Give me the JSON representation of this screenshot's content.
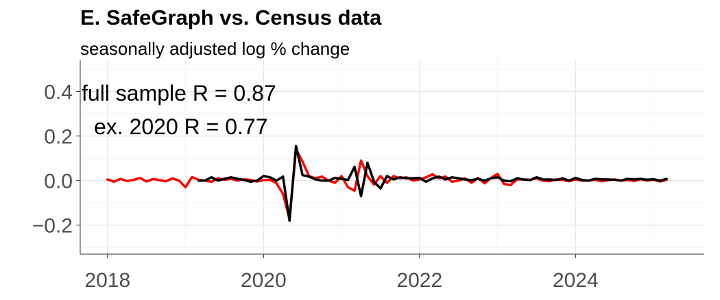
{
  "chart_data": {
    "type": "line",
    "title": "E. SafeGraph vs. Census data",
    "subtitle": "seasonally adjusted log % change",
    "xlabel": "",
    "ylabel": "",
    "xlim": [
      2017.65,
      2025.65
    ],
    "ylim": [
      -0.33,
      0.54
    ],
    "x_ticks": [
      2018,
      2020,
      2022,
      2024
    ],
    "x_tick_labels": [
      "2018",
      "2020",
      "2022",
      "2024"
    ],
    "y_ticks": [
      -0.2,
      0.0,
      0.2,
      0.4
    ],
    "y_tick_labels": [
      "−0.2",
      "0.0",
      "0.2",
      "0.4"
    ],
    "grid": true,
    "annotations": [
      "full sample R = 0.87",
      "ex. 2020 R = 0.77"
    ],
    "series": [
      {
        "color": "#ff0000",
        "x": [
          2018.0,
          2018.083,
          2018.167,
          2018.25,
          2018.333,
          2018.417,
          2018.5,
          2018.583,
          2018.667,
          2018.75,
          2018.833,
          2018.917,
          2019.0,
          2019.083,
          2019.167,
          2019.25,
          2019.333,
          2019.417,
          2019.5,
          2019.583,
          2019.667,
          2019.75,
          2019.833,
          2019.917,
          2020.0,
          2020.083,
          2020.167,
          2020.25,
          2020.333,
          2020.417,
          2020.5,
          2020.583,
          2020.667,
          2020.75,
          2020.833,
          2020.917,
          2021.0,
          2021.083,
          2021.167,
          2021.25,
          2021.333,
          2021.417,
          2021.5,
          2021.583,
          2021.667,
          2021.75,
          2021.833,
          2021.917,
          2022.0,
          2022.083,
          2022.167,
          2022.25,
          2022.333,
          2022.417,
          2022.5,
          2022.583,
          2022.667,
          2022.75,
          2022.833,
          2022.917,
          2023.0,
          2023.083,
          2023.167,
          2023.25,
          2023.333,
          2023.417,
          2023.5,
          2023.583,
          2023.667,
          2023.75,
          2023.833,
          2023.917,
          2024.0,
          2024.083,
          2024.167,
          2024.25,
          2024.333,
          2024.417,
          2024.5,
          2024.583,
          2024.667,
          2024.75,
          2024.833,
          2024.917,
          2025.0,
          2025.083,
          2025.167
        ],
        "values": [
          0.005,
          -0.005,
          0.008,
          -0.002,
          0.003,
          0.012,
          -0.004,
          0.007,
          0.002,
          -0.003,
          0.01,
          0.0,
          -0.03,
          0.016,
          0.004,
          0.0,
          -0.005,
          0.01,
          0.004,
          0.008,
          0.0,
          0.006,
          0.003,
          -0.004,
          0.002,
          0.004,
          -0.012,
          -0.06,
          -0.17,
          0.14,
          0.085,
          0.02,
          0.01,
          0.018,
          0.0,
          -0.01,
          0.02,
          -0.03,
          -0.045,
          0.09,
          0.02,
          -0.018,
          0.02,
          -0.01,
          0.02,
          0.01,
          0.015,
          0.0,
          0.005,
          0.015,
          0.028,
          0.01,
          0.018,
          -0.005,
          0.0,
          0.01,
          -0.01,
          0.012,
          -0.012,
          0.012,
          0.03,
          -0.015,
          -0.02,
          0.005,
          0.005,
          0.004,
          0.01,
          0.0,
          -0.003,
          0.005,
          0.003,
          -0.003,
          0.005,
          0.0,
          0.0,
          0.004,
          -0.003,
          0.002,
          0.005,
          0.0,
          0.003,
          -0.002,
          0.006,
          0.0,
          0.004,
          -0.004,
          0.004
        ]
      },
      {
        "color": "#000000",
        "x": [
          2019.167,
          2019.25,
          2019.333,
          2019.417,
          2019.5,
          2019.583,
          2019.667,
          2019.75,
          2019.833,
          2019.917,
          2020.0,
          2020.083,
          2020.167,
          2020.25,
          2020.333,
          2020.417,
          2020.5,
          2020.583,
          2020.667,
          2020.75,
          2020.833,
          2020.917,
          2021.0,
          2021.083,
          2021.167,
          2021.25,
          2021.333,
          2021.417,
          2021.5,
          2021.583,
          2021.667,
          2021.75,
          2021.833,
          2021.917,
          2022.0,
          2022.083,
          2022.167,
          2022.25,
          2022.333,
          2022.417,
          2022.5,
          2022.583,
          2022.667,
          2022.75,
          2022.833,
          2022.917,
          2023.0,
          2023.083,
          2023.167,
          2023.25,
          2023.333,
          2023.417,
          2023.5,
          2023.583,
          2023.667,
          2023.75,
          2023.833,
          2023.917,
          2024.0,
          2024.083,
          2024.167,
          2024.25,
          2024.333,
          2024.417,
          2024.5,
          2024.583,
          2024.667,
          2024.75,
          2024.833,
          2024.917,
          2025.0,
          2025.083,
          2025.167
        ],
        "values": [
          0.0,
          0.0,
          0.015,
          0.0,
          0.008,
          0.015,
          0.008,
          0.003,
          -0.005,
          0.0,
          0.02,
          0.015,
          0.0,
          0.018,
          -0.18,
          0.155,
          0.025,
          0.018,
          0.005,
          0.0,
          0.0,
          0.012,
          0.008,
          0.003,
          0.062,
          -0.07,
          0.08,
          -0.005,
          -0.035,
          0.02,
          0.005,
          0.015,
          0.01,
          0.01,
          0.012,
          -0.005,
          0.01,
          0.018,
          0.005,
          0.015,
          0.01,
          0.005,
          0.002,
          0.008,
          0.0,
          0.01,
          0.015,
          0.0,
          -0.003,
          0.01,
          0.005,
          0.002,
          0.015,
          0.005,
          0.005,
          0.003,
          0.01,
          0.0,
          0.012,
          0.003,
          0.0,
          0.008,
          0.006,
          0.005,
          0.004,
          0.0,
          0.008,
          0.005,
          0.008,
          0.004,
          0.006,
          0.0,
          0.008
        ]
      }
    ]
  }
}
